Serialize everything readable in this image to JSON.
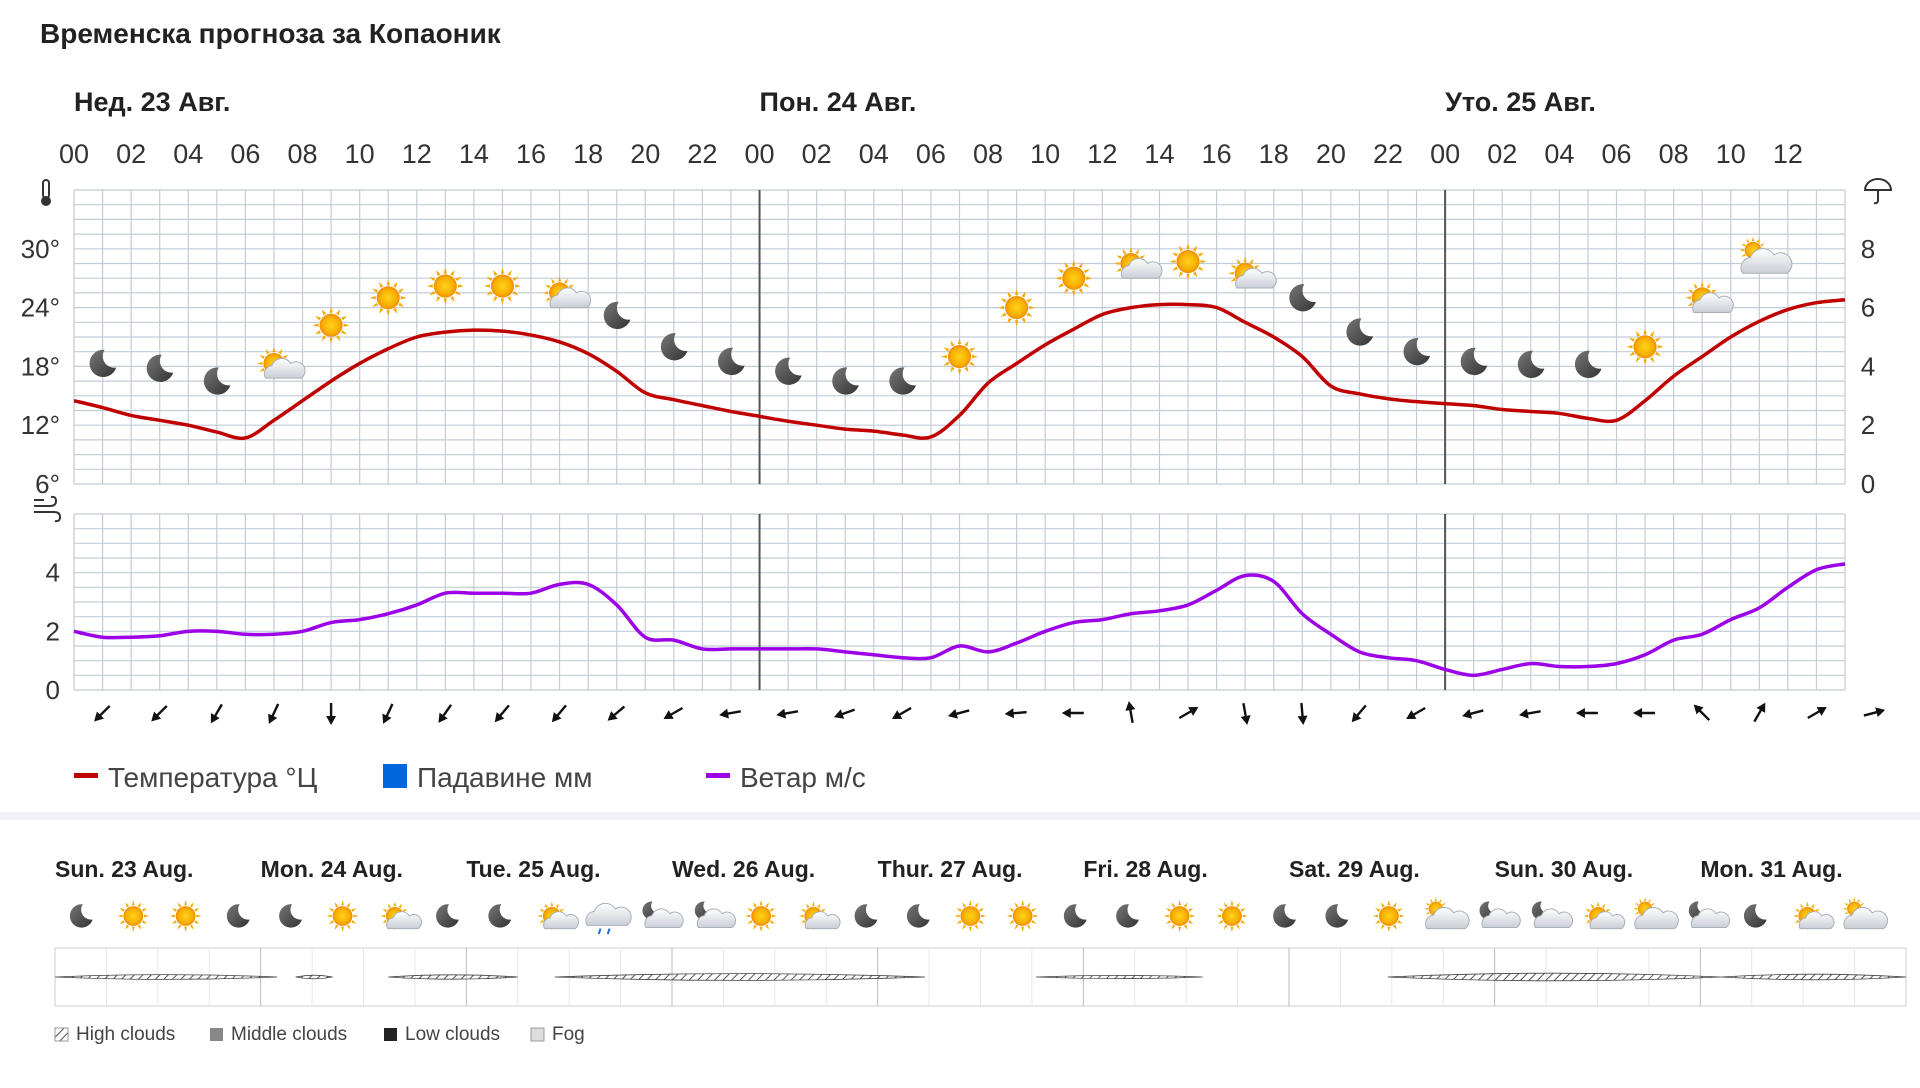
{
  "title": "Временска прогноза за Копаоник",
  "chart_data": [
    {
      "type": "line",
      "panel": "temperature",
      "day_labels": [
        "Нед. 23 Авг.",
        "Пон. 24 Авг.",
        "Уто. 25 Авг."
      ],
      "hour_labels": [
        "00",
        "02",
        "04",
        "06",
        "08",
        "10",
        "12",
        "14",
        "16",
        "18",
        "20",
        "22",
        "00",
        "02",
        "04",
        "06",
        "08",
        "10",
        "12",
        "14",
        "16",
        "18",
        "20",
        "22",
        "00",
        "02",
        "04",
        "06",
        "08",
        "10",
        "12"
      ],
      "y_ticks": [
        "6°",
        "12°",
        "18°",
        "24°",
        "30°"
      ],
      "y_right_ticks": [
        "0",
        "2",
        "4",
        "6",
        "8"
      ],
      "ylim": [
        6,
        36
      ],
      "y_right_lim": [
        0,
        10
      ],
      "x_hours": [
        0,
        62
      ],
      "series": [
        {
          "name": "Температура °Ц",
          "color": "#c00000",
          "hours": [
            0,
            1,
            2,
            3,
            4,
            5,
            6,
            7,
            8,
            9,
            10,
            11,
            12,
            13,
            14,
            15,
            16,
            17,
            18,
            19,
            20,
            21,
            22,
            23,
            24,
            25,
            26,
            27,
            28,
            29,
            30,
            31,
            32,
            33,
            34,
            35,
            36,
            37,
            38,
            39,
            40,
            41,
            42,
            43,
            44,
            45,
            46,
            47,
            48,
            49,
            50,
            51,
            52,
            53,
            54,
            55,
            56,
            57,
            58,
            59,
            60,
            61,
            62
          ],
          "values": [
            14.5,
            13.8,
            13.0,
            12.5,
            12.0,
            11.3,
            10.7,
            12.5,
            14.5,
            16.5,
            18.3,
            19.8,
            21.0,
            21.5,
            21.7,
            21.6,
            21.2,
            20.5,
            19.3,
            17.5,
            15.3,
            14.6,
            14.0,
            13.4,
            12.9,
            12.4,
            12.0,
            11.6,
            11.4,
            11.0,
            10.8,
            13.0,
            16.3,
            18.3,
            20.2,
            21.8,
            23.3,
            24.0,
            24.3,
            24.3,
            24.0,
            22.5,
            21.0,
            19.0,
            16.0,
            15.2,
            14.7,
            14.4,
            14.2,
            14.0,
            13.6,
            13.4,
            13.2,
            12.7,
            12.5,
            14.5,
            17.0,
            19.0,
            21.0,
            22.6,
            23.8,
            24.5,
            24.8
          ]
        }
      ],
      "weather_icons": [
        {
          "hour": 1,
          "icon": "moon-icon"
        },
        {
          "hour": 3,
          "icon": "moon-icon"
        },
        {
          "hour": 5,
          "icon": "moon-icon"
        },
        {
          "hour": 7,
          "icon": "sun-cloud-icon"
        },
        {
          "hour": 9,
          "icon": "sun-icon"
        },
        {
          "hour": 11,
          "icon": "sun-icon"
        },
        {
          "hour": 13,
          "icon": "sun-icon"
        },
        {
          "hour": 15,
          "icon": "sun-icon"
        },
        {
          "hour": 17,
          "icon": "sun-cloud-icon"
        },
        {
          "hour": 19,
          "icon": "moon-icon"
        },
        {
          "hour": 21,
          "icon": "moon-icon"
        },
        {
          "hour": 23,
          "icon": "moon-icon"
        },
        {
          "hour": 25,
          "icon": "moon-icon"
        },
        {
          "hour": 27,
          "icon": "moon-icon"
        },
        {
          "hour": 29,
          "icon": "moon-icon"
        },
        {
          "hour": 31,
          "icon": "sun-icon"
        },
        {
          "hour": 33,
          "icon": "sun-icon"
        },
        {
          "hour": 35,
          "icon": "sun-icon"
        },
        {
          "hour": 37,
          "icon": "sun-cloud-icon"
        },
        {
          "hour": 39,
          "icon": "sun-icon"
        },
        {
          "hour": 41,
          "icon": "sun-cloud-icon"
        },
        {
          "hour": 43,
          "icon": "moon-icon"
        },
        {
          "hour": 45,
          "icon": "moon-icon"
        },
        {
          "hour": 47,
          "icon": "moon-icon"
        },
        {
          "hour": 49,
          "icon": "moon-icon"
        },
        {
          "hour": 51,
          "icon": "moon-icon"
        },
        {
          "hour": 53,
          "icon": "moon-icon"
        },
        {
          "hour": 55,
          "icon": "sun-icon"
        },
        {
          "hour": 57,
          "icon": "sun-cloud-icon"
        },
        {
          "hour": 59,
          "icon": "cloud-sun-icon"
        }
      ],
      "weather_icon_temps": [
        18.3,
        17.8,
        16.5,
        18.3,
        22.2,
        25.0,
        26.2,
        26.2,
        25.5,
        23.2,
        20.0,
        18.5,
        17.5,
        16.5,
        16.5,
        19.0,
        24.0,
        27.0,
        28.5,
        28.7,
        27.5,
        25.0,
        21.5,
        19.5,
        18.5,
        18.2,
        18.2,
        20.0,
        25.0,
        29.0
      ]
    },
    {
      "type": "line",
      "panel": "wind",
      "y_ticks": [
        "0",
        "2",
        "4"
      ],
      "ylim": [
        0,
        6
      ],
      "series": [
        {
          "name": "Ветар м/с",
          "color": "#9b00e6",
          "hours": [
            0,
            1,
            2,
            3,
            4,
            5,
            6,
            7,
            8,
            9,
            10,
            11,
            12,
            13,
            14,
            15,
            16,
            17,
            18,
            19,
            20,
            21,
            22,
            23,
            24,
            25,
            26,
            27,
            28,
            29,
            30,
            31,
            32,
            33,
            34,
            35,
            36,
            37,
            38,
            39,
            40,
            41,
            42,
            43,
            44,
            45,
            46,
            47,
            48,
            49,
            50,
            51,
            52,
            53,
            54,
            55,
            56,
            57,
            58,
            59,
            60,
            61,
            62
          ],
          "values": [
            2.0,
            1.8,
            1.8,
            1.85,
            2.0,
            2.0,
            1.9,
            1.9,
            2.0,
            2.3,
            2.4,
            2.6,
            2.9,
            3.3,
            3.3,
            3.3,
            3.3,
            3.6,
            3.6,
            2.9,
            1.8,
            1.7,
            1.4,
            1.4,
            1.4,
            1.4,
            1.4,
            1.3,
            1.2,
            1.1,
            1.1,
            1.5,
            1.3,
            1.6,
            2.0,
            2.3,
            2.4,
            2.6,
            2.7,
            2.9,
            3.4,
            3.9,
            3.7,
            2.6,
            1.9,
            1.3,
            1.1,
            1.0,
            0.7,
            0.5,
            0.7,
            0.9,
            0.8,
            0.8,
            0.9,
            1.2,
            1.7,
            1.9,
            2.4,
            2.8,
            3.5,
            4.1,
            4.3
          ]
        }
      ],
      "wind_arrow_angles": [
        225,
        225,
        210,
        205,
        180,
        205,
        215,
        220,
        220,
        230,
        240,
        260,
        260,
        250,
        240,
        255,
        265,
        270,
        350,
        60,
        170,
        175,
        220,
        240,
        255,
        260,
        270,
        270,
        315,
        30,
        60,
        75
      ]
    },
    {
      "type": "table",
      "panel": "weekly-overview",
      "day_labels": [
        "Sun. 23 Aug.",
        "Mon. 24 Aug.",
        "Tue. 25 Aug.",
        "Wed. 26 Aug.",
        "Thur. 27 Aug.",
        "Fri. 28 Aug.",
        "Sat. 29 Aug.",
        "Sun. 30 Aug.",
        "Mon. 31 Aug."
      ],
      "icons": [
        "moon-icon",
        "sun-icon",
        "sun-icon",
        "moon-icon",
        "moon-icon",
        "sun-icon",
        "sun-cloud-icon",
        "moon-icon",
        "moon-icon",
        "sun-cloud-icon",
        "rain-cloud-icon",
        "moon-cloud-icon",
        "moon-cloud-icon",
        "sun-icon",
        "sun-cloud-icon",
        "moon-icon",
        "moon-icon",
        "sun-icon",
        "sun-icon",
        "moon-icon",
        "moon-icon",
        "sun-icon",
        "sun-icon",
        "moon-icon",
        "moon-icon",
        "sun-icon",
        "cloud-sun-icon",
        "moon-cloud-icon",
        "moon-cloud-icon",
        "sun-cloud-icon",
        "cloud-sun-icon",
        "moon-cloud-icon",
        "moon-icon",
        "sun-cloud-icon",
        "cloud-sun-icon"
      ],
      "cloud_strips": [
        {
          "start": 0.0,
          "end": 0.12,
          "level": 0.35
        },
        {
          "start": 0.13,
          "end": 0.15,
          "level": 0.2
        },
        {
          "start": 0.18,
          "end": 0.25,
          "level": 0.3
        },
        {
          "start": 0.27,
          "end": 0.47,
          "level": 0.6
        },
        {
          "start": 0.53,
          "end": 0.62,
          "level": 0.15
        },
        {
          "start": 0.72,
          "end": 0.9,
          "level": 0.7
        },
        {
          "start": 0.9,
          "end": 1.0,
          "level": 0.45
        }
      ]
    }
  ],
  "legend": {
    "temperature": "Температура °Ц",
    "precipitation": "Падавине мм",
    "wind": "Ветар м/с",
    "temperature_color": "#c00000",
    "precipitation_color": "#0066dd",
    "wind_color": "#9b00e6"
  },
  "cloud_legend": {
    "high": "High clouds",
    "middle": "Middle clouds",
    "low": "Low clouds",
    "fog": "Fog"
  },
  "icons": {
    "temperature_axis": "thermometer-icon",
    "precip_axis": "umbrella-icon",
    "wind_axis": "wind-icon"
  }
}
